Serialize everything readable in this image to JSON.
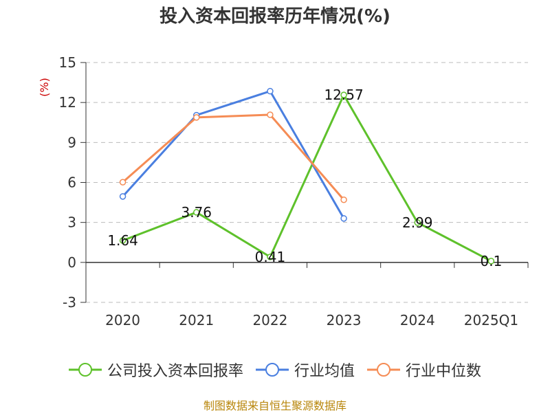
{
  "chart_data": {
    "type": "line",
    "title": "投入资本回报率历年情况(%)",
    "ylabel": "(%)",
    "xlabel": "",
    "categories": [
      "2020",
      "2021",
      "2022",
      "2023",
      "2024",
      "2025Q1"
    ],
    "ylim": [
      -3,
      15
    ],
    "yticks": [
      -3,
      0,
      3,
      6,
      9,
      12,
      15
    ],
    "grid": true,
    "legend": "bottom",
    "series": [
      {
        "name": "公司投入资本回报率",
        "color": "#5ec12b",
        "values": [
          1.64,
          3.76,
          0.41,
          12.57,
          2.99,
          0.1
        ],
        "labels": [
          "1.64",
          "3.76",
          "0.41",
          "12.57",
          "2.99",
          "0.1"
        ]
      },
      {
        "name": "行业均值",
        "color": "#4a7fe0",
        "values": [
          4.95,
          11.05,
          12.85,
          3.3,
          null,
          null
        ]
      },
      {
        "name": "行业中位数",
        "color": "#f58c55",
        "values": [
          6.02,
          10.88,
          11.08,
          4.7,
          null,
          null
        ]
      }
    ]
  },
  "source": "制图数据来自恒生聚源数据库"
}
